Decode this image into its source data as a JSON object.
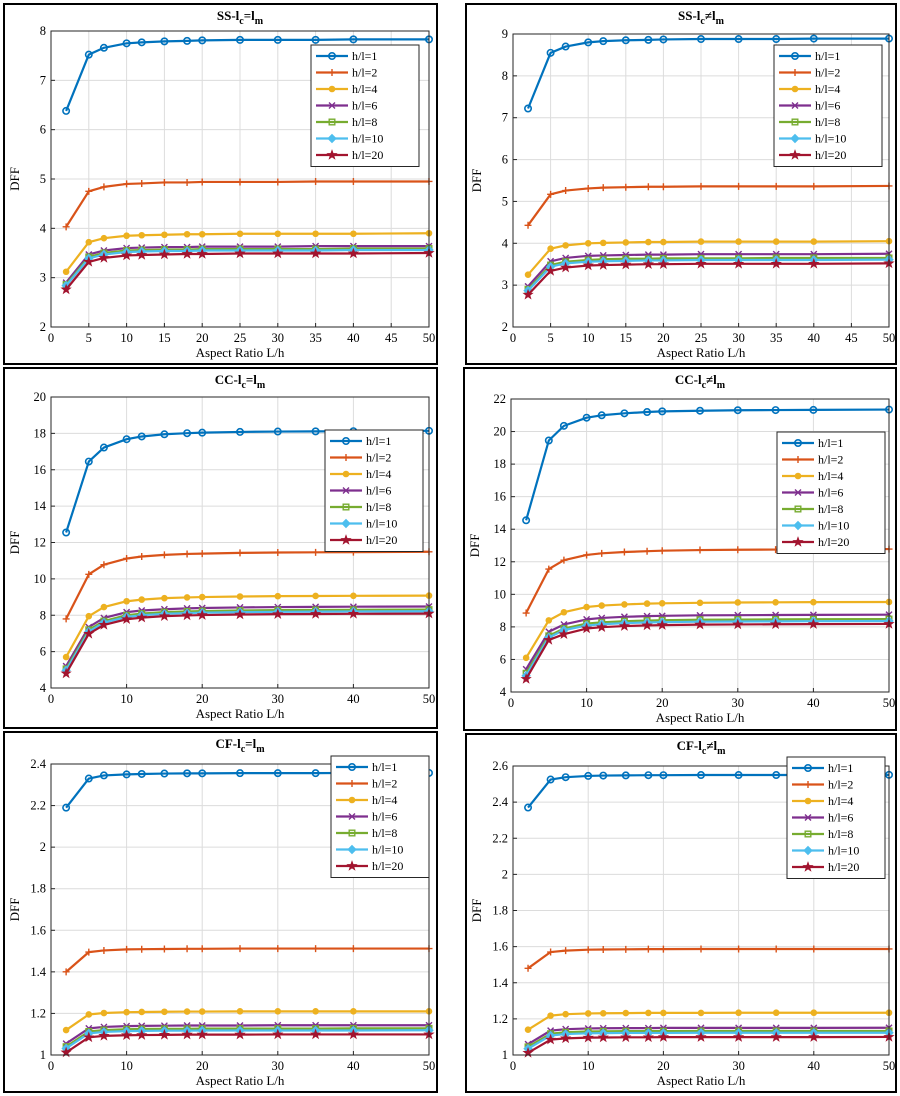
{
  "chart_data": [
    {
      "type": "line",
      "title_main": "SS-l",
      "title_sub1": "c",
      "title_rel": "=l",
      "title_sub2": "m",
      "xlabel": "Aspect Ratio L/h",
      "ylabel": "DFF",
      "xlim": [
        0,
        50
      ],
      "ylim": [
        2,
        8
      ],
      "xticks": [
        0,
        5,
        10,
        15,
        20,
        25,
        30,
        35,
        40,
        45,
        50
      ],
      "yticks": [
        2,
        3,
        4,
        5,
        6,
        7,
        8
      ],
      "grid": true,
      "legend": "top-right",
      "x": [
        2,
        5,
        7,
        10,
        12,
        15,
        18,
        20,
        25,
        30,
        35,
        40,
        50
      ],
      "series": [
        {
          "name": "h/l=1",
          "values": [
            6.38,
            7.52,
            7.66,
            7.75,
            7.77,
            7.79,
            7.8,
            7.81,
            7.82,
            7.82,
            7.82,
            7.83,
            7.83
          ]
        },
        {
          "name": "h/l=2",
          "values": [
            4.03,
            4.75,
            4.84,
            4.9,
            4.91,
            4.93,
            4.93,
            4.94,
            4.94,
            4.94,
            4.95,
            4.95,
            4.95
          ]
        },
        {
          "name": "h/l=4",
          "values": [
            3.12,
            3.72,
            3.8,
            3.85,
            3.86,
            3.87,
            3.88,
            3.88,
            3.89,
            3.89,
            3.89,
            3.89,
            3.9
          ]
        },
        {
          "name": "h/l=6",
          "values": [
            2.9,
            3.47,
            3.55,
            3.6,
            3.61,
            3.62,
            3.62,
            3.63,
            3.63,
            3.63,
            3.64,
            3.64,
            3.64
          ]
        },
        {
          "name": "h/l=8",
          "values": [
            2.86,
            3.42,
            3.5,
            3.55,
            3.56,
            3.57,
            3.57,
            3.58,
            3.58,
            3.58,
            3.58,
            3.59,
            3.59
          ]
        },
        {
          "name": "h/l=10",
          "values": [
            2.84,
            3.39,
            3.47,
            3.52,
            3.53,
            3.54,
            3.54,
            3.55,
            3.55,
            3.55,
            3.55,
            3.56,
            3.56
          ]
        },
        {
          "name": "h/l=20",
          "values": [
            2.76,
            3.32,
            3.4,
            3.45,
            3.46,
            3.47,
            3.48,
            3.48,
            3.49,
            3.49,
            3.49,
            3.49,
            3.5
          ]
        }
      ]
    },
    {
      "type": "line",
      "title_main": "SS-l",
      "title_sub1": "c",
      "title_rel": "≠l",
      "title_sub2": "m",
      "xlabel": "Aspect Ratio L/h",
      "ylabel": "DFF",
      "xlim": [
        0,
        50
      ],
      "ylim": [
        2,
        9
      ],
      "xticks": [
        0,
        5,
        10,
        15,
        20,
        25,
        30,
        35,
        40,
        45,
        50
      ],
      "yticks": [
        2,
        3,
        4,
        5,
        6,
        7,
        8,
        9
      ],
      "grid": true,
      "legend": "top-right",
      "x": [
        2,
        5,
        7,
        10,
        12,
        15,
        18,
        20,
        25,
        30,
        35,
        40,
        50
      ],
      "series": [
        {
          "name": "h/l=1",
          "values": [
            7.22,
            8.55,
            8.7,
            8.8,
            8.83,
            8.85,
            8.86,
            8.87,
            8.88,
            8.88,
            8.88,
            8.89,
            8.89
          ]
        },
        {
          "name": "h/l=2",
          "values": [
            4.43,
            5.17,
            5.26,
            5.31,
            5.33,
            5.34,
            5.35,
            5.35,
            5.36,
            5.36,
            5.36,
            5.36,
            5.37
          ]
        },
        {
          "name": "h/l=4",
          "values": [
            3.25,
            3.87,
            3.95,
            4.0,
            4.01,
            4.02,
            4.03,
            4.03,
            4.04,
            4.04,
            4.04,
            4.04,
            4.05
          ]
        },
        {
          "name": "h/l=6",
          "values": [
            2.97,
            3.57,
            3.65,
            3.7,
            3.71,
            3.72,
            3.73,
            3.73,
            3.74,
            3.74,
            3.74,
            3.74,
            3.75
          ]
        },
        {
          "name": "h/l=8",
          "values": [
            2.9,
            3.48,
            3.56,
            3.6,
            3.62,
            3.63,
            3.63,
            3.64,
            3.64,
            3.64,
            3.65,
            3.65,
            3.65
          ]
        },
        {
          "name": "h/l=10",
          "values": [
            2.87,
            3.44,
            3.52,
            3.56,
            3.57,
            3.58,
            3.59,
            3.59,
            3.6,
            3.6,
            3.6,
            3.6,
            3.61
          ]
        },
        {
          "name": "h/l=20",
          "values": [
            2.77,
            3.34,
            3.42,
            3.47,
            3.48,
            3.49,
            3.5,
            3.5,
            3.51,
            3.51,
            3.51,
            3.51,
            3.52
          ]
        }
      ]
    },
    {
      "type": "line",
      "title_main": "CC-l",
      "title_sub1": "c",
      "title_rel": "=l",
      "title_sub2": "m",
      "xlabel": "Aspect Ratio L/h",
      "ylabel": "DFF",
      "xlim": [
        0,
        50
      ],
      "ylim": [
        4,
        20
      ],
      "xticks": [
        0,
        10,
        20,
        30,
        40,
        50
      ],
      "yticks": [
        4,
        6,
        8,
        10,
        12,
        14,
        16,
        18,
        20
      ],
      "grid": true,
      "legend": "top-right",
      "x": [
        2,
        5,
        7,
        10,
        12,
        15,
        18,
        20,
        25,
        30,
        35,
        40,
        50
      ],
      "series": [
        {
          "name": "h/l=1",
          "values": [
            12.55,
            16.45,
            17.22,
            17.68,
            17.83,
            17.95,
            18.01,
            18.04,
            18.08,
            18.1,
            18.11,
            18.12,
            18.14
          ]
        },
        {
          "name": "h/l=2",
          "values": [
            7.8,
            10.25,
            10.78,
            11.12,
            11.23,
            11.32,
            11.37,
            11.39,
            11.43,
            11.45,
            11.46,
            11.47,
            11.49
          ]
        },
        {
          "name": "h/l=4",
          "values": [
            5.7,
            7.95,
            8.45,
            8.77,
            8.86,
            8.94,
            8.98,
            9.0,
            9.03,
            9.05,
            9.06,
            9.07,
            9.08
          ]
        },
        {
          "name": "h/l=6",
          "values": [
            5.2,
            7.35,
            7.85,
            8.17,
            8.26,
            8.33,
            8.38,
            8.4,
            8.43,
            8.45,
            8.46,
            8.47,
            8.48
          ]
        },
        {
          "name": "h/l=8",
          "values": [
            5.05,
            7.2,
            7.68,
            8.0,
            8.09,
            8.17,
            8.21,
            8.23,
            8.26,
            8.28,
            8.29,
            8.3,
            8.31
          ]
        },
        {
          "name": "h/l=10",
          "values": [
            4.97,
            7.1,
            7.6,
            7.91,
            8.0,
            8.08,
            8.12,
            8.14,
            8.17,
            8.19,
            8.2,
            8.21,
            8.22
          ]
        },
        {
          "name": "h/l=20",
          "values": [
            4.8,
            6.98,
            7.47,
            7.78,
            7.87,
            7.95,
            7.99,
            8.01,
            8.04,
            8.06,
            8.07,
            8.08,
            8.09
          ]
        }
      ]
    },
    {
      "type": "line",
      "title_main": "CC-l",
      "title_sub1": "c",
      "title_rel": "≠l",
      "title_sub2": "m",
      "xlabel": "Aspect Ratio L/h",
      "ylabel": "DFF",
      "xlim": [
        0,
        50
      ],
      "ylim": [
        4,
        22
      ],
      "xticks": [
        0,
        10,
        20,
        30,
        40,
        50
      ],
      "yticks": [
        4,
        6,
        8,
        10,
        12,
        14,
        16,
        18,
        20,
        22
      ],
      "grid": true,
      "legend": "top-right",
      "x": [
        2,
        5,
        7,
        10,
        12,
        15,
        18,
        20,
        25,
        30,
        35,
        40,
        50
      ],
      "series": [
        {
          "name": "h/l=1",
          "values": [
            14.55,
            19.45,
            20.35,
            20.85,
            21.0,
            21.12,
            21.2,
            21.24,
            21.28,
            21.31,
            21.32,
            21.33,
            21.35
          ]
        },
        {
          "name": "h/l=2",
          "values": [
            8.85,
            11.55,
            12.1,
            12.42,
            12.52,
            12.6,
            12.65,
            12.68,
            12.72,
            12.74,
            12.75,
            12.76,
            12.78
          ]
        },
        {
          "name": "h/l=4",
          "values": [
            6.1,
            8.4,
            8.9,
            9.22,
            9.31,
            9.38,
            9.43,
            9.45,
            9.48,
            9.5,
            9.51,
            9.52,
            9.53
          ]
        },
        {
          "name": "h/l=6",
          "values": [
            5.4,
            7.7,
            8.15,
            8.46,
            8.55,
            8.62,
            8.66,
            8.68,
            8.71,
            8.72,
            8.73,
            8.74,
            8.75
          ]
        },
        {
          "name": "h/l=8",
          "values": [
            5.15,
            7.45,
            7.9,
            8.2,
            8.28,
            8.35,
            8.39,
            8.41,
            8.44,
            8.45,
            8.46,
            8.47,
            8.48
          ]
        },
        {
          "name": "h/l=10",
          "values": [
            5.0,
            7.35,
            7.8,
            8.08,
            8.16,
            8.23,
            8.27,
            8.29,
            8.32,
            8.33,
            8.34,
            8.35,
            8.36
          ]
        },
        {
          "name": "h/l=20",
          "values": [
            4.8,
            7.2,
            7.55,
            7.9,
            7.98,
            8.05,
            8.09,
            8.11,
            8.14,
            8.15,
            8.16,
            8.17,
            8.18
          ]
        }
      ]
    },
    {
      "type": "line",
      "title_main": "CF-l",
      "title_sub1": "c",
      "title_rel": "=l",
      "title_sub2": "m",
      "xlabel": "Aspect Ratio L/h",
      "ylabel": "DFF",
      "xlim": [
        0,
        50
      ],
      "ylim": [
        1,
        2.4
      ],
      "xticks": [
        0,
        10,
        20,
        30,
        40,
        50
      ],
      "yticks": [
        1,
        1.2,
        1.4,
        1.6,
        1.8,
        2,
        2.2,
        2.4
      ],
      "grid": true,
      "legend": "top-right",
      "x": [
        2,
        5,
        7,
        10,
        12,
        15,
        18,
        20,
        25,
        30,
        35,
        40,
        50
      ],
      "series": [
        {
          "name": "h/l=1",
          "values": [
            2.19,
            2.33,
            2.345,
            2.35,
            2.352,
            2.354,
            2.355,
            2.355,
            2.356,
            2.356,
            2.356,
            2.357,
            2.357
          ]
        },
        {
          "name": "h/l=2",
          "values": [
            1.4,
            1.495,
            1.503,
            1.508,
            1.509,
            1.51,
            1.511,
            1.511,
            1.512,
            1.512,
            1.512,
            1.512,
            1.512
          ]
        },
        {
          "name": "h/l=4",
          "values": [
            1.12,
            1.195,
            1.202,
            1.206,
            1.207,
            1.208,
            1.209,
            1.209,
            1.21,
            1.21,
            1.21,
            1.21,
            1.21
          ]
        },
        {
          "name": "h/l=6",
          "values": [
            1.055,
            1.128,
            1.135,
            1.139,
            1.14,
            1.141,
            1.142,
            1.142,
            1.142,
            1.143,
            1.143,
            1.143,
            1.143
          ]
        },
        {
          "name": "h/l=8",
          "values": [
            1.04,
            1.113,
            1.12,
            1.124,
            1.125,
            1.126,
            1.126,
            1.127,
            1.127,
            1.127,
            1.127,
            1.128,
            1.128
          ]
        },
        {
          "name": "h/l=10",
          "values": [
            1.032,
            1.104,
            1.111,
            1.115,
            1.116,
            1.117,
            1.117,
            1.118,
            1.118,
            1.118,
            1.118,
            1.118,
            1.119
          ]
        },
        {
          "name": "h/l=20",
          "values": [
            1.012,
            1.085,
            1.092,
            1.095,
            1.096,
            1.097,
            1.098,
            1.098,
            1.098,
            1.099,
            1.099,
            1.099,
            1.099
          ]
        }
      ]
    },
    {
      "type": "line",
      "title_main": "CF-l",
      "title_sub1": "c",
      "title_rel": "≠l",
      "title_sub2": "m",
      "xlabel": "Aspect Ratio L/h",
      "ylabel": "DFF",
      "xlim": [
        0,
        50
      ],
      "ylim": [
        1,
        2.6
      ],
      "xticks": [
        0,
        10,
        20,
        30,
        40,
        50
      ],
      "yticks": [
        1,
        1.2,
        1.4,
        1.6,
        1.8,
        2,
        2.2,
        2.4,
        2.6
      ],
      "grid": true,
      "legend": "top-right",
      "x": [
        2,
        5,
        7,
        10,
        12,
        15,
        18,
        20,
        25,
        30,
        35,
        40,
        50
      ],
      "series": [
        {
          "name": "h/l=1",
          "values": [
            2.37,
            2.525,
            2.538,
            2.545,
            2.547,
            2.548,
            2.549,
            2.549,
            2.55,
            2.55,
            2.55,
            2.55,
            2.551
          ]
        },
        {
          "name": "h/l=2",
          "values": [
            1.48,
            1.57,
            1.578,
            1.583,
            1.584,
            1.585,
            1.586,
            1.586,
            1.587,
            1.587,
            1.587,
            1.587,
            1.587
          ]
        },
        {
          "name": "h/l=4",
          "values": [
            1.14,
            1.218,
            1.226,
            1.23,
            1.231,
            1.232,
            1.233,
            1.233,
            1.233,
            1.234,
            1.234,
            1.234,
            1.234
          ]
        },
        {
          "name": "h/l=6",
          "values": [
            1.06,
            1.135,
            1.143,
            1.147,
            1.148,
            1.149,
            1.149,
            1.15,
            1.15,
            1.15,
            1.15,
            1.15,
            1.151
          ]
        },
        {
          "name": "h/l=8",
          "values": [
            1.045,
            1.118,
            1.126,
            1.13,
            1.131,
            1.132,
            1.132,
            1.132,
            1.133,
            1.133,
            1.133,
            1.133,
            1.133
          ]
        },
        {
          "name": "h/l=10",
          "values": [
            1.035,
            1.108,
            1.116,
            1.12,
            1.121,
            1.122,
            1.122,
            1.122,
            1.123,
            1.123,
            1.123,
            1.123,
            1.123
          ]
        },
        {
          "name": "h/l=20",
          "values": [
            1.012,
            1.085,
            1.092,
            1.096,
            1.097,
            1.098,
            1.098,
            1.099,
            1.099,
            1.099,
            1.099,
            1.099,
            1.1
          ]
        }
      ]
    }
  ],
  "series_style": [
    {
      "color": "#0072BD",
      "marker": "circle"
    },
    {
      "color": "#D95319",
      "marker": "plus"
    },
    {
      "color": "#EDB120",
      "marker": "dot"
    },
    {
      "color": "#7E2F8E",
      "marker": "x"
    },
    {
      "color": "#77AC30",
      "marker": "square"
    },
    {
      "color": "#4DBEEE",
      "marker": "diamond"
    },
    {
      "color": "#A2142F",
      "marker": "star"
    }
  ]
}
